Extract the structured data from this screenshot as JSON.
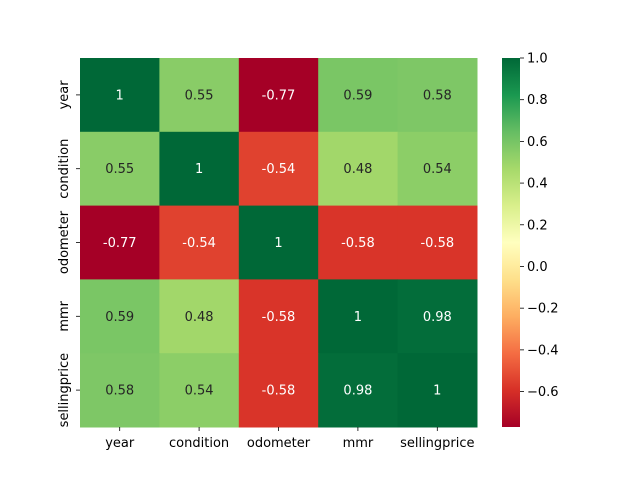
{
  "chart_data": {
    "type": "heatmap",
    "title": "",
    "xlabel": "",
    "ylabel": "",
    "x_labels": [
      "year",
      "condition",
      "odometer",
      "mmr",
      "sellingprice"
    ],
    "y_labels": [
      "year",
      "condition",
      "odometer",
      "mmr",
      "sellingprice"
    ],
    "values": [
      [
        1,
        0.55,
        -0.77,
        0.59,
        0.58
      ],
      [
        0.55,
        1,
        -0.54,
        0.48,
        0.54
      ],
      [
        -0.77,
        -0.54,
        1,
        -0.58,
        -0.58
      ],
      [
        0.59,
        0.48,
        -0.58,
        1,
        0.98
      ],
      [
        0.58,
        0.54,
        -0.58,
        0.98,
        1
      ]
    ],
    "cell_labels": [
      [
        "1",
        "0.55",
        "-0.77",
        "0.59",
        "0.58"
      ],
      [
        "0.55",
        "1",
        "-0.54",
        "0.48",
        "0.54"
      ],
      [
        "-0.77",
        "-0.54",
        "1",
        "-0.58",
        "-0.58"
      ],
      [
        "0.59",
        "0.48",
        "-0.58",
        "1",
        "0.98"
      ],
      [
        "0.58",
        "0.54",
        "-0.58",
        "0.98",
        "1"
      ]
    ],
    "colormap": "RdYlGn",
    "colorbar": {
      "range": [
        -0.77,
        1.0
      ],
      "ticks": [
        -0.6,
        -0.4,
        -0.2,
        0.0,
        0.2,
        0.4,
        0.6,
        0.8,
        1.0
      ],
      "tick_labels": [
        "−0.6",
        "−0.4",
        "−0.2",
        "0.0",
        "0.2",
        "0.4",
        "0.6",
        "0.8",
        "1.0"
      ],
      "placement": "right"
    },
    "annotation_colors": {
      "dark": "#ffffff",
      "light": "#262626"
    }
  }
}
